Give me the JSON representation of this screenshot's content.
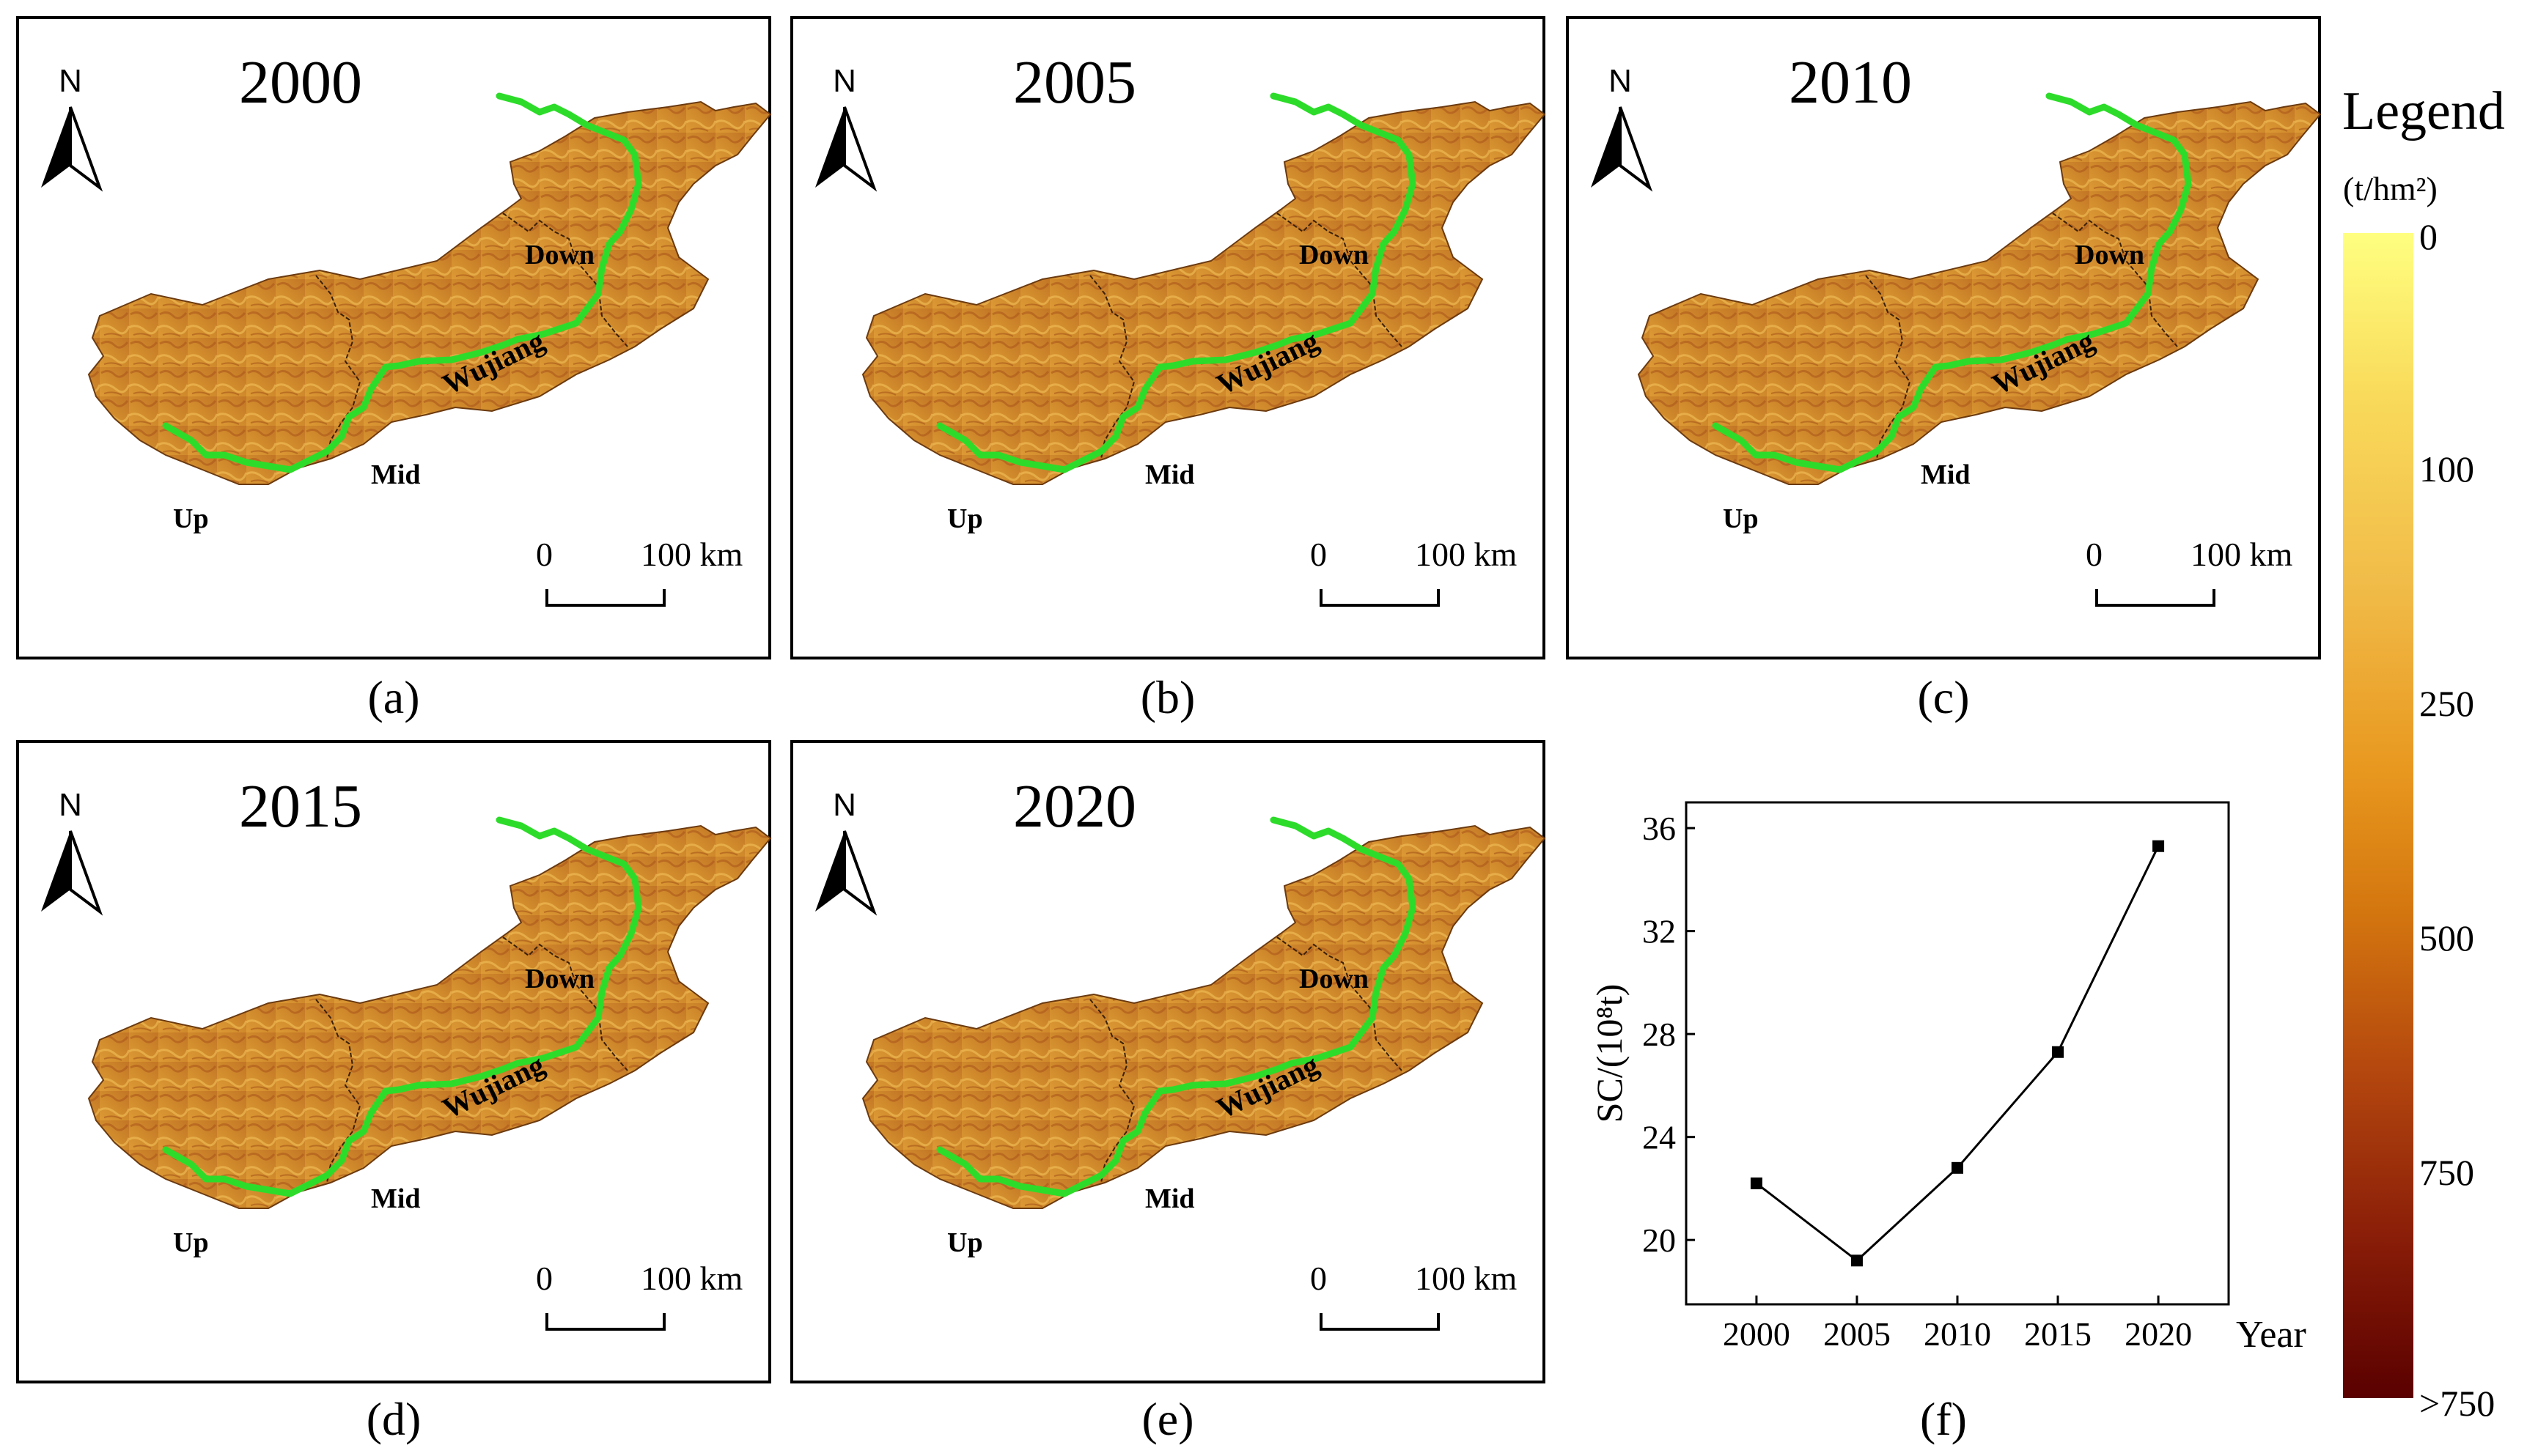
{
  "maps": [
    {
      "year": "2000",
      "caption": "(a)"
    },
    {
      "year": "2005",
      "caption": "(b)"
    },
    {
      "year": "2010",
      "caption": "(c)"
    },
    {
      "year": "2015",
      "caption": "(d)"
    },
    {
      "year": "2020",
      "caption": "(e)"
    }
  ],
  "map_labels": {
    "up": "Up",
    "mid": "Mid",
    "down": "Down",
    "river": "Wujiang",
    "north": "N"
  },
  "scale_bar": {
    "zero": "0",
    "max": "100 km"
  },
  "legend": {
    "title": "Legend",
    "unit": "(t/hm²)",
    "ticks": [
      "0",
      "100",
      "250",
      "500",
      "750",
      ">750"
    ]
  },
  "colors": {
    "river": "#2ddc2a",
    "basin_light": "#e8a93e",
    "basin_dark": "#b8661c"
  },
  "chart_caption": "(f)",
  "chart_data": {
    "type": "line",
    "x": [
      2000,
      2005,
      2010,
      2015,
      2020
    ],
    "values": [
      22.2,
      19.2,
      22.8,
      27.3,
      35.3
    ],
    "xlabel": "Year",
    "ylabel": "SC/(10⁸t)",
    "xticks": [
      "2000",
      "2005",
      "2010",
      "2015",
      "2020"
    ],
    "yticks": [
      "20",
      "24",
      "28",
      "32",
      "36"
    ],
    "ylim": [
      17.5,
      37
    ],
    "xlim": [
      1996.5,
      2023.5
    ]
  }
}
